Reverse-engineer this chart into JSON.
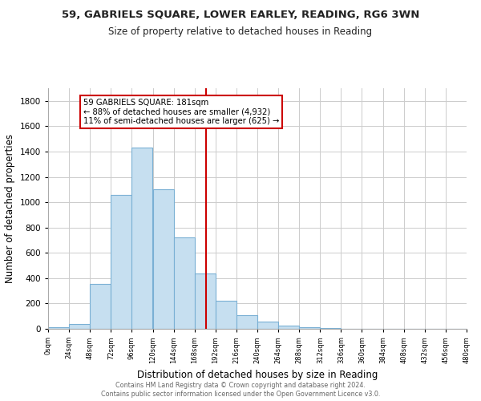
{
  "title": "59, GABRIELS SQUARE, LOWER EARLEY, READING, RG6 3WN",
  "subtitle": "Size of property relative to detached houses in Reading",
  "xlabel": "Distribution of detached houses by size in Reading",
  "ylabel": "Number of detached properties",
  "bin_edges": [
    0,
    24,
    48,
    72,
    96,
    120,
    144,
    168,
    192,
    216,
    240,
    264,
    288,
    312,
    336,
    360,
    384,
    408,
    432,
    456,
    480
  ],
  "bar_heights": [
    15,
    35,
    355,
    1055,
    1430,
    1100,
    720,
    435,
    220,
    105,
    55,
    25,
    15,
    5,
    2,
    1,
    1,
    0,
    0,
    0
  ],
  "bar_color": "#c6dff0",
  "bar_edgecolor": "#7ab0d4",
  "vline_x": 181,
  "vline_color": "#cc0000",
  "annotation_title": "59 GABRIELS SQUARE: 181sqm",
  "annotation_line1": "← 88% of detached houses are smaller (4,932)",
  "annotation_line2": "11% of semi-detached houses are larger (625) →",
  "annotation_box_edgecolor": "#cc0000",
  "annotation_box_facecolor": "#ffffff",
  "ylim": [
    0,
    1900
  ],
  "yticks": [
    0,
    200,
    400,
    600,
    800,
    1000,
    1200,
    1400,
    1600,
    1800
  ],
  "xtick_labels": [
    "0sqm",
    "24sqm",
    "48sqm",
    "72sqm",
    "96sqm",
    "120sqm",
    "144sqm",
    "168sqm",
    "192sqm",
    "216sqm",
    "240sqm",
    "264sqm",
    "288sqm",
    "312sqm",
    "336sqm",
    "360sqm",
    "384sqm",
    "408sqm",
    "432sqm",
    "456sqm",
    "480sqm"
  ],
  "footer1": "Contains HM Land Registry data © Crown copyright and database right 2024.",
  "footer2": "Contains public sector information licensed under the Open Government Licence v3.0.",
  "background_color": "#ffffff",
  "grid_color": "#cccccc"
}
